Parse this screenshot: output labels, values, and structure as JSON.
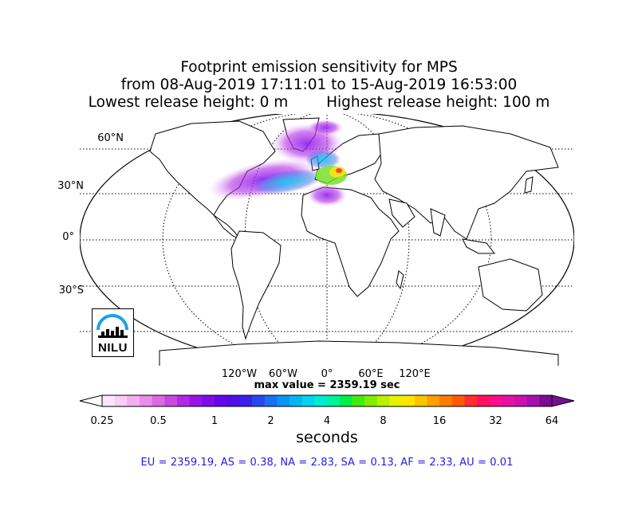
{
  "title": {
    "line1": "Footprint emission sensitivity for MPS",
    "line2": "from 08-Aug-2019 17:11:01 to 15-Aug-2019 16:53:00",
    "lowest": "Lowest release height: 0 m",
    "highest": "Highest release height: 100 m"
  },
  "map": {
    "lat_labels": [
      "60°N",
      "30°N",
      "0°",
      "30°S"
    ],
    "lon_labels": [
      "120°W",
      "60°W",
      "0°",
      "60°E",
      "120°E"
    ],
    "max_value": "max value = 2359.19 sec"
  },
  "logo": {
    "text": "NILU"
  },
  "colorbar": {
    "ticks": [
      "0.25",
      "0.5",
      "1",
      "2",
      "4",
      "8",
      "16",
      "32",
      "64"
    ],
    "label": "seconds",
    "colors": [
      "#fde6fb",
      "#f9cdf6",
      "#f2aef1",
      "#e88de9",
      "#dc6ae2",
      "#c848e0",
      "#b128e4",
      "#9616e8",
      "#7e0cea",
      "#6606ea",
      "#4f10e6",
      "#3a20e8",
      "#2848ee",
      "#1870f2",
      "#0a94f4",
      "#00b6f2",
      "#00d4ee",
      "#00ecd2",
      "#00f29a",
      "#00ee4a",
      "#40ec10",
      "#80ee00",
      "#b8f000",
      "#e6f200",
      "#ffe600",
      "#ffc400",
      "#ffa000",
      "#ff7c00",
      "#ff5a08",
      "#ff2e30",
      "#ff1060",
      "#f8108a",
      "#e610a4",
      "#cc10b0",
      "#a810ae",
      "#7a0e90"
    ]
  },
  "footer": "EU = 2359.19,  AS = 0.38,  NA = 2.83,  SA = 0.13,  AF = 2.33,  AU = 0.01"
}
